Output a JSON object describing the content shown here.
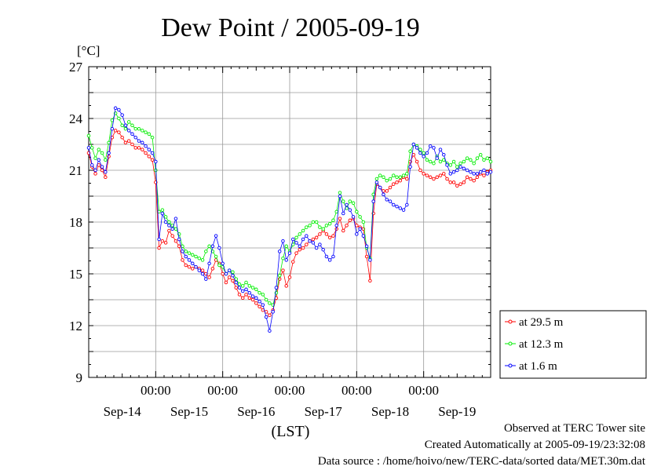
{
  "chart_data": {
    "type": "line",
    "title": "Dew Point / 2005-09-19",
    "ylabel": "[°C]",
    "xlabel": "(LST)",
    "ylim": [
      9,
      27
    ],
    "yticks": [
      9,
      12,
      15,
      18,
      21,
      24,
      27
    ],
    "xlim_days": [
      0,
      6
    ],
    "time_tick_label": "00:00",
    "date_labels": [
      "Sep-14",
      "Sep-15",
      "Sep-16",
      "Sep-17",
      "Sep-18",
      "Sep-19"
    ],
    "grid": true,
    "legend_position": "right",
    "series": [
      {
        "name": "at 29.5 m",
        "color": "#ff0000",
        "x": [
          0.0,
          0.05,
          0.1,
          0.15,
          0.2,
          0.25,
          0.3,
          0.35,
          0.4,
          0.45,
          0.5,
          0.55,
          0.6,
          0.65,
          0.7,
          0.75,
          0.8,
          0.85,
          0.9,
          0.95,
          1.0,
          1.05,
          1.1,
          1.15,
          1.2,
          1.25,
          1.3,
          1.35,
          1.4,
          1.45,
          1.5,
          1.55,
          1.6,
          1.65,
          1.7,
          1.75,
          1.8,
          1.85,
          1.9,
          1.95,
          2.0,
          2.05,
          2.1,
          2.15,
          2.2,
          2.25,
          2.3,
          2.35,
          2.4,
          2.45,
          2.5,
          2.55,
          2.6,
          2.65,
          2.7,
          2.75,
          2.8,
          2.85,
          2.9,
          2.95,
          3.0,
          3.05,
          3.1,
          3.15,
          3.2,
          3.25,
          3.3,
          3.35,
          3.4,
          3.45,
          3.5,
          3.55,
          3.6,
          3.65,
          3.7,
          3.75,
          3.8,
          3.85,
          3.9,
          3.95,
          4.0,
          4.05,
          4.1,
          4.15,
          4.2,
          4.25,
          4.3,
          4.35,
          4.4,
          4.45,
          4.5,
          4.55,
          4.6,
          4.65,
          4.7,
          4.75,
          4.8,
          4.85,
          4.9,
          4.95,
          5.0,
          5.05,
          5.1,
          5.15,
          5.2,
          5.25,
          5.3,
          5.35,
          5.4,
          5.45,
          5.5,
          5.55,
          5.6,
          5.65,
          5.7,
          5.75,
          5.8,
          5.85,
          5.9,
          5.95,
          6.0
        ],
        "y": [
          22.0,
          21.2,
          20.8,
          21.3,
          21.0,
          20.6,
          21.8,
          22.9,
          23.3,
          23.2,
          22.9,
          22.6,
          22.7,
          22.5,
          22.3,
          22.3,
          22.2,
          22.0,
          21.8,
          21.6,
          20.3,
          16.5,
          16.9,
          16.8,
          17.5,
          17.2,
          16.9,
          16.6,
          15.8,
          15.5,
          15.4,
          15.3,
          15.4,
          15.3,
          15.2,
          15.0,
          14.8,
          15.3,
          15.8,
          15.6,
          15.0,
          14.5,
          14.8,
          14.6,
          14.2,
          13.8,
          13.6,
          13.8,
          13.6,
          13.5,
          13.3,
          13.1,
          12.9,
          12.8,
          12.6,
          12.9,
          13.6,
          14.7,
          15.2,
          14.3,
          14.8,
          15.7,
          16.2,
          16.4,
          16.5,
          16.7,
          16.9,
          17.0,
          17.1,
          17.3,
          17.5,
          17.3,
          17.1,
          17.2,
          17.6,
          18.2,
          17.5,
          17.8,
          18.1,
          18.2,
          17.8,
          17.7,
          17.6,
          16.0,
          14.6,
          18.5,
          20.2,
          20.0,
          19.8,
          19.8,
          20.0,
          20.2,
          20.3,
          20.4,
          20.6,
          20.5,
          21.5,
          21.9,
          21.5,
          21.0,
          20.8,
          20.7,
          20.6,
          20.5,
          20.6,
          20.7,
          20.8,
          20.5,
          20.3,
          20.3,
          20.1,
          20.2,
          20.3,
          20.6,
          20.5,
          20.4,
          20.6,
          20.8,
          20.7,
          20.9,
          21.0
        ]
      },
      {
        "name": "at 12.3 m",
        "color": "#00ee00",
        "x": [
          0.0,
          0.05,
          0.1,
          0.15,
          0.2,
          0.25,
          0.3,
          0.35,
          0.4,
          0.45,
          0.5,
          0.55,
          0.6,
          0.65,
          0.7,
          0.75,
          0.8,
          0.85,
          0.9,
          0.95,
          1.0,
          1.05,
          1.1,
          1.15,
          1.2,
          1.25,
          1.3,
          1.35,
          1.4,
          1.45,
          1.5,
          1.55,
          1.6,
          1.65,
          1.7,
          1.75,
          1.8,
          1.85,
          1.9,
          1.95,
          2.0,
          2.05,
          2.1,
          2.15,
          2.2,
          2.25,
          2.3,
          2.35,
          2.4,
          2.45,
          2.5,
          2.55,
          2.6,
          2.65,
          2.7,
          2.75,
          2.8,
          2.85,
          2.9,
          2.95,
          3.0,
          3.05,
          3.1,
          3.15,
          3.2,
          3.25,
          3.3,
          3.35,
          3.4,
          3.45,
          3.5,
          3.55,
          3.6,
          3.65,
          3.7,
          3.75,
          3.8,
          3.85,
          3.9,
          3.95,
          4.0,
          4.05,
          4.1,
          4.15,
          4.2,
          4.25,
          4.3,
          4.35,
          4.4,
          4.45,
          4.5,
          4.55,
          4.6,
          4.65,
          4.7,
          4.75,
          4.8,
          4.85,
          4.9,
          4.95,
          5.0,
          5.05,
          5.1,
          5.15,
          5.2,
          5.25,
          5.3,
          5.35,
          5.4,
          5.45,
          5.5,
          5.55,
          5.6,
          5.65,
          5.7,
          5.75,
          5.8,
          5.85,
          5.9,
          5.95,
          6.0
        ],
        "y": [
          23.0,
          22.3,
          21.7,
          22.2,
          22.0,
          21.6,
          22.6,
          23.9,
          24.3,
          24.0,
          23.6,
          23.4,
          23.8,
          23.6,
          23.4,
          23.4,
          23.3,
          23.2,
          23.1,
          22.9,
          21.0,
          18.6,
          18.7,
          18.3,
          18.0,
          17.8,
          17.6,
          17.3,
          16.6,
          16.3,
          16.2,
          16.1,
          16.0,
          15.9,
          15.8,
          16.3,
          16.6,
          16.3,
          16.0,
          15.5,
          15.4,
          15.0,
          15.2,
          15.1,
          14.7,
          14.4,
          14.3,
          14.5,
          14.3,
          14.2,
          14.1,
          13.9,
          13.8,
          13.5,
          13.3,
          13.2,
          13.9,
          14.9,
          15.9,
          16.6,
          16.3,
          16.7,
          17.1,
          17.3,
          17.5,
          17.7,
          17.8,
          18.0,
          18.0,
          17.7,
          17.6,
          17.8,
          17.9,
          18.1,
          18.6,
          19.7,
          19.2,
          18.8,
          19.2,
          19.1,
          18.6,
          18.3,
          18.0,
          16.5,
          15.9,
          19.6,
          20.5,
          20.7,
          20.6,
          20.4,
          20.5,
          20.7,
          20.6,
          20.6,
          20.7,
          20.8,
          22.1,
          22.5,
          22.4,
          22.2,
          22.0,
          21.6,
          21.5,
          21.4,
          21.8,
          21.5,
          21.6,
          21.4,
          21.3,
          21.5,
          21.2,
          21.4,
          21.5,
          21.7,
          21.6,
          21.4,
          21.7,
          21.9,
          21.6,
          21.7,
          21.5
        ]
      },
      {
        "name": "at 1.6 m",
        "color": "#0000ff",
        "x": [
          0.0,
          0.05,
          0.1,
          0.15,
          0.2,
          0.25,
          0.3,
          0.35,
          0.4,
          0.45,
          0.5,
          0.55,
          0.6,
          0.65,
          0.7,
          0.75,
          0.8,
          0.85,
          0.9,
          0.95,
          1.0,
          1.05,
          1.1,
          1.15,
          1.2,
          1.25,
          1.3,
          1.35,
          1.4,
          1.45,
          1.5,
          1.55,
          1.6,
          1.65,
          1.7,
          1.75,
          1.8,
          1.85,
          1.9,
          1.95,
          2.0,
          2.05,
          2.1,
          2.15,
          2.2,
          2.25,
          2.3,
          2.35,
          2.4,
          2.45,
          2.5,
          2.55,
          2.6,
          2.65,
          2.7,
          2.75,
          2.8,
          2.85,
          2.9,
          2.95,
          3.0,
          3.05,
          3.1,
          3.15,
          3.2,
          3.25,
          3.3,
          3.35,
          3.4,
          3.45,
          3.5,
          3.55,
          3.6,
          3.65,
          3.7,
          3.75,
          3.8,
          3.85,
          3.9,
          3.95,
          4.0,
          4.05,
          4.1,
          4.15,
          4.2,
          4.25,
          4.3,
          4.35,
          4.4,
          4.45,
          4.5,
          4.55,
          4.6,
          4.65,
          4.7,
          4.75,
          4.8,
          4.85,
          4.9,
          4.95,
          5.0,
          5.05,
          5.1,
          5.15,
          5.2,
          5.25,
          5.3,
          5.35,
          5.4,
          5.45,
          5.5,
          5.55,
          5.6,
          5.65,
          5.7,
          5.75,
          5.8,
          5.85,
          5.9,
          5.95,
          6.0
        ],
        "y": [
          22.3,
          21.3,
          21.0,
          21.6,
          21.2,
          20.9,
          22.0,
          23.4,
          24.6,
          24.5,
          24.2,
          23.6,
          23.3,
          23.1,
          22.9,
          22.7,
          22.6,
          22.4,
          22.2,
          22.0,
          21.5,
          17.0,
          18.5,
          18.0,
          17.8,
          17.6,
          18.2,
          17.0,
          16.3,
          16.0,
          15.8,
          15.6,
          15.4,
          15.2,
          15.0,
          14.7,
          15.6,
          16.6,
          17.2,
          16.5,
          15.6,
          15.0,
          15.2,
          14.9,
          14.5,
          14.2,
          14.0,
          14.1,
          13.9,
          13.7,
          13.6,
          13.4,
          13.2,
          12.5,
          11.7,
          12.8,
          14.2,
          16.3,
          16.9,
          15.8,
          16.2,
          17.0,
          16.8,
          16.6,
          17.0,
          17.2,
          16.9,
          16.8,
          16.5,
          16.7,
          16.4,
          16.0,
          15.8,
          16.0,
          17.8,
          19.5,
          18.5,
          19.0,
          18.7,
          18.3,
          17.3,
          17.6,
          17.2,
          16.6,
          15.8,
          19.2,
          20.3,
          20.0,
          19.6,
          19.3,
          19.2,
          19.0,
          18.9,
          18.8,
          18.7,
          19.0,
          21.2,
          22.5,
          22.3,
          22.0,
          21.8,
          22.0,
          22.4,
          22.3,
          21.7,
          22.2,
          21.9,
          21.3,
          20.8,
          20.9,
          21.0,
          21.2,
          21.1,
          21.0,
          20.9,
          20.8,
          20.8,
          20.9,
          21.0,
          20.8,
          20.9
        ]
      }
    ]
  },
  "footer": {
    "line1": "Observed at TERC Tower site",
    "line2": "Created Automatically at 2005-09-19/23:32:08",
    "line3": "Data source : /home/hoivo/new/TERC-data/sorted  data/MET.30m.dat"
  }
}
